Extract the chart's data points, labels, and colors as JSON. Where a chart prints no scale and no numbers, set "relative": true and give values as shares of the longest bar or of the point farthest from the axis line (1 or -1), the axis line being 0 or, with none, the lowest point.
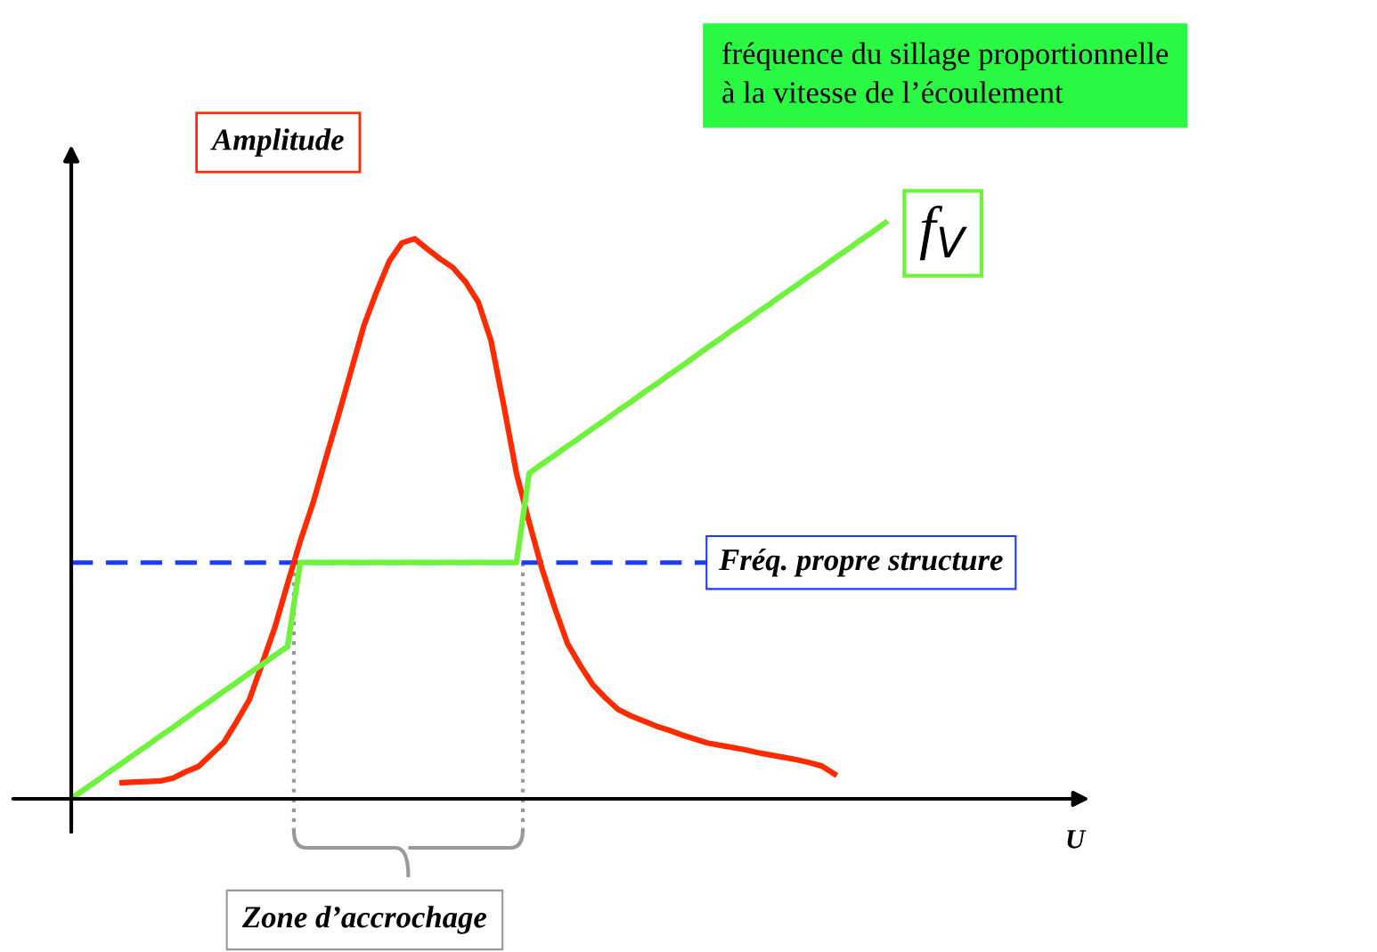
{
  "chart_data": {
    "type": "line",
    "relative": true,
    "legend": false,
    "marker": "none",
    "line_style": "solid",
    "categories": [
      null,
      null,
      null,
      null,
      null,
      null,
      null,
      null,
      null,
      null,
      null,
      null,
      null,
      null,
      null,
      null,
      null,
      null,
      null,
      null,
      null,
      null,
      null,
      null,
      null,
      null,
      null,
      null,
      null,
      null,
      null,
      null,
      null,
      null,
      null,
      null,
      null,
      null,
      null,
      null,
      null,
      null,
      null,
      null,
      null,
      null,
      null,
      null,
      null,
      null,
      null,
      null,
      null,
      null,
      null,
      null,
      null,
      null,
      null,
      null,
      null,
      null,
      null,
      null,
      null
    ],
    "series": [
      {
        "color": "#ff2a00",
        "values": [
          null,
          null,
          null,
          null,
          0.028,
          0.029,
          0.03,
          0.031,
          0.036,
          0.047,
          0.056,
          0.077,
          0.098,
          0.134,
          0.172,
          0.234,
          0.297,
          0.373,
          0.447,
          0.513,
          0.59,
          0.665,
          0.743,
          0.821,
          0.88,
          0.933,
          0.965,
          0.972,
          0.954,
          0.937,
          0.922,
          0.897,
          0.862,
          0.795,
          0.683,
          0.565,
          0.48,
          0.4,
          0.332,
          0.27,
          0.232,
          0.198,
          0.175,
          0.155,
          0.144,
          0.135,
          0.126,
          0.119,
          0.111,
          0.104,
          0.097,
          0.093,
          0.089,
          0.085,
          0.08,
          0.076,
          0.072,
          0.068,
          0.063,
          0.057,
          0.043,
          null,
          null,
          null,
          null
        ]
      },
      {
        "color": "#6ef23c",
        "values": [
          0,
          0.016,
          0.031,
          0.047,
          0.062,
          0.078,
          0.093,
          0.109,
          0.124,
          0.14,
          0.156,
          0.171,
          0.187,
          0.202,
          0.218,
          0.233,
          0.249,
          0.264,
          0.41,
          0.41,
          0.41,
          0.41,
          0.41,
          0.41,
          0.41,
          0.41,
          0.41,
          0.41,
          0.41,
          0.41,
          0.41,
          0.41,
          0.41,
          0.41,
          0.41,
          0.41,
          0.565,
          0.581,
          0.596,
          0.612,
          0.627,
          0.643,
          0.658,
          0.674,
          0.689,
          0.705,
          0.72,
          0.736,
          0.751,
          0.767,
          0.783,
          0.798,
          0.814,
          0.829,
          0.845,
          0.86,
          0.876,
          0.891,
          0.907,
          0.922,
          0.938,
          0.953,
          0.969,
          0.984,
          1.0
        ]
      }
    ],
    "ref_lines": [
      {
        "axis": "y",
        "value": 0.41,
        "label": "Fréq. propre structure",
        "color": "#1a3cff",
        "line_style": "dashed"
      }
    ],
    "annotations": [
      "Amplitude",
      "f$_{V}$",
      "fréquence du sillage proportionnelle à la vitesse de l’écoulement",
      "Zone d’accrochage",
      "U"
    ]
  }
}
